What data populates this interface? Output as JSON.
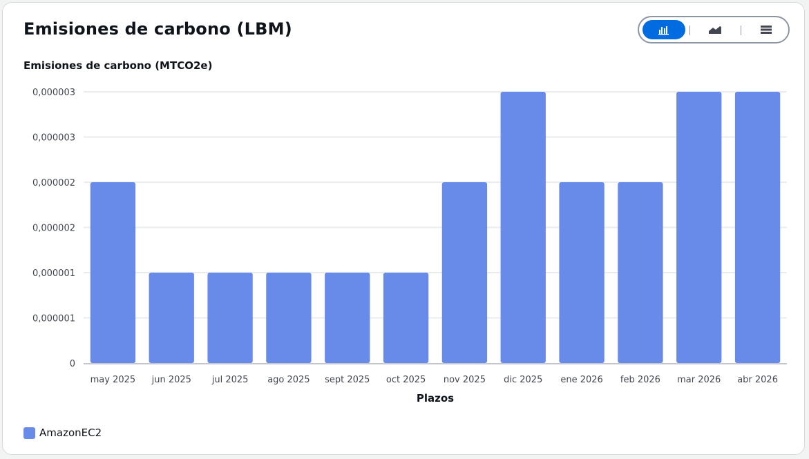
{
  "card": {
    "title": "Emisiones de carbono (LBM)"
  },
  "view_toggle": {
    "options": [
      {
        "icon": "bar-chart-icon",
        "active": true
      },
      {
        "icon": "area-chart-icon",
        "active": false
      },
      {
        "icon": "table-icon",
        "active": false
      }
    ],
    "active_color": "#006ce0"
  },
  "colors": {
    "bar": "#688ae8",
    "grid": "#e9ebed",
    "axis": "#c6c6cd",
    "text": "#0f141a",
    "tick_text": "#424650"
  },
  "chart_data": {
    "type": "bar",
    "title": "Emisiones de carbono (MTCO2e)",
    "xlabel": "Plazos",
    "ylabel": "",
    "categories": [
      "may 2025",
      "jun 2025",
      "jul 2025",
      "ago 2025",
      "sept 2025",
      "oct 2025",
      "nov 2025",
      "dic 2025",
      "ene 2026",
      "feb 2026",
      "mar 2026",
      "abr 2026"
    ],
    "series": [
      {
        "name": "AmazonEC2",
        "color": "#688ae8",
        "values": [
          2e-06,
          1e-06,
          1e-06,
          1e-06,
          1e-06,
          1e-06,
          2e-06,
          3e-06,
          2e-06,
          2e-06,
          3e-06,
          3e-06
        ]
      }
    ],
    "ylim": [
      0,
      3e-06
    ],
    "y_tick_labels": [
      "0",
      "0,000001",
      "0,000001",
      "0,000002",
      "0,000002",
      "0,000003",
      "0,000003"
    ],
    "grid": true,
    "legend_position": "bottom-left"
  }
}
